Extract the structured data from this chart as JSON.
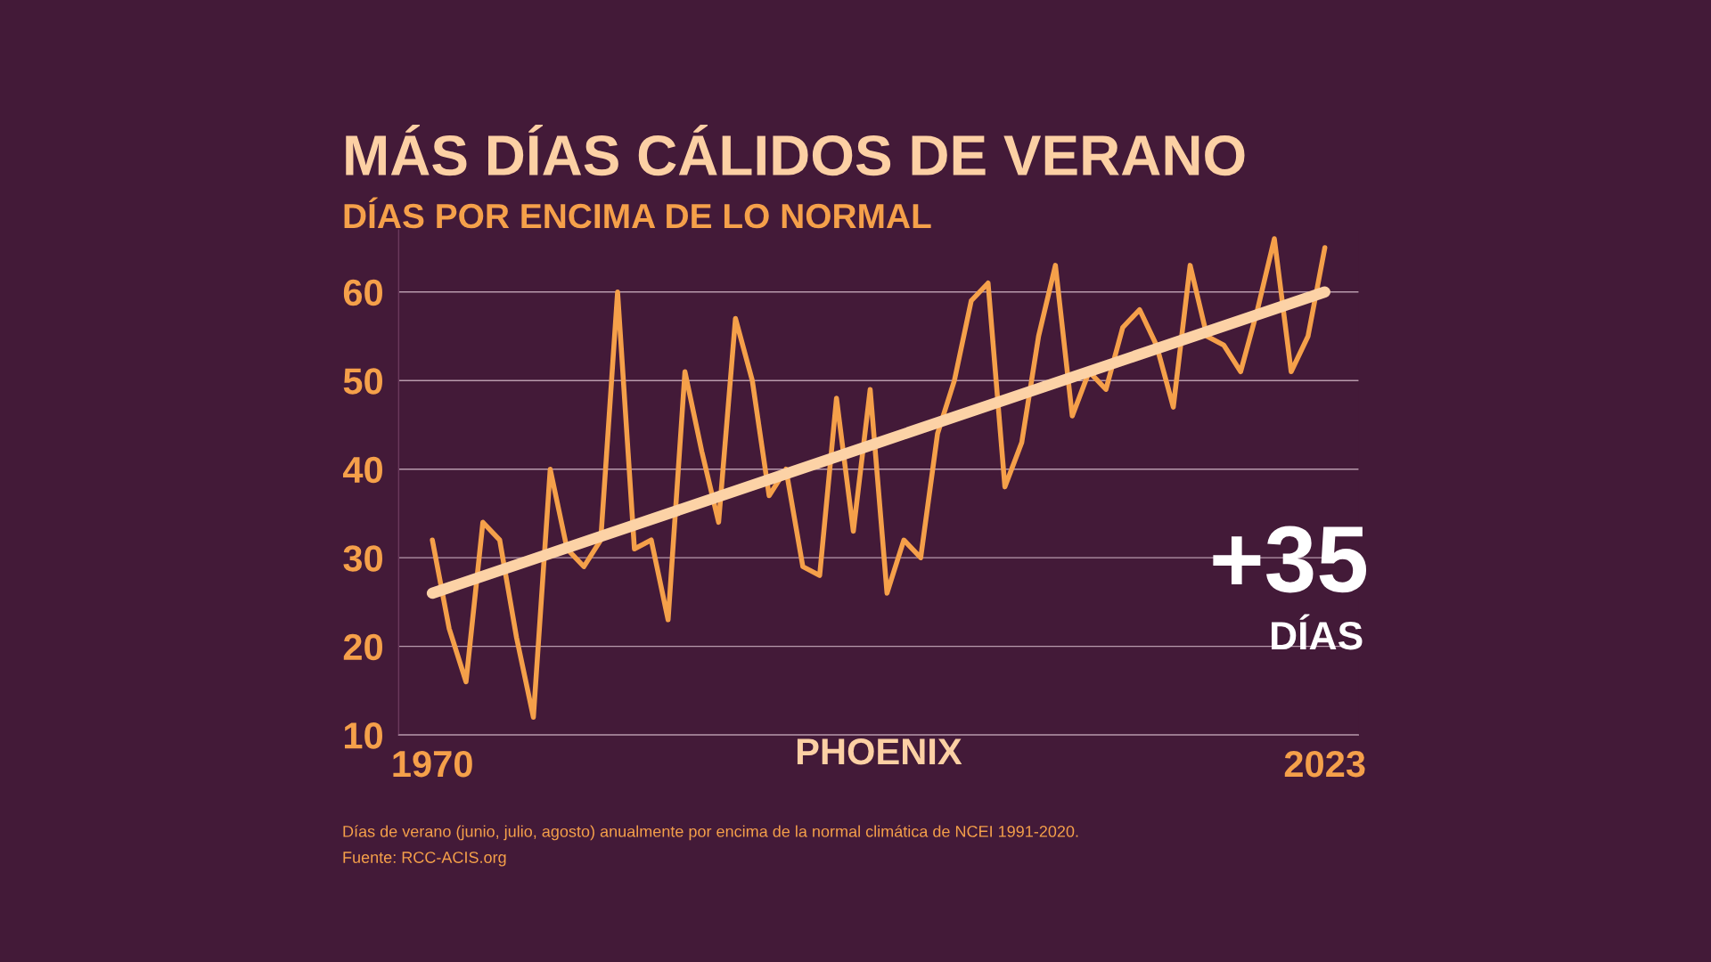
{
  "chart_data": {
    "type": "line",
    "title": "MÁS DÍAS CÁLIDOS DE VERANO",
    "subtitle": "DÍAS POR ENCIMA DE LO NORMAL",
    "xlabel": "PHOENIX",
    "x": [
      1970,
      1971,
      1972,
      1973,
      1974,
      1975,
      1976,
      1977,
      1978,
      1979,
      1980,
      1981,
      1982,
      1983,
      1984,
      1985,
      1986,
      1987,
      1988,
      1989,
      1990,
      1991,
      1992,
      1993,
      1994,
      1995,
      1996,
      1997,
      1998,
      1999,
      2000,
      2001,
      2002,
      2003,
      2004,
      2005,
      2006,
      2007,
      2008,
      2009,
      2010,
      2011,
      2012,
      2013,
      2014,
      2015,
      2016,
      2017,
      2018,
      2019,
      2020,
      2021,
      2022,
      2023
    ],
    "series": [
      {
        "color": "#f5a04a",
        "values": [
          32,
          22,
          16,
          34,
          32,
          21,
          12,
          40,
          31,
          29,
          32,
          60,
          31,
          32,
          23,
          51,
          42,
          34,
          57,
          50,
          37,
          40,
          29,
          28,
          48,
          33,
          49,
          26,
          32,
          30,
          44,
          50,
          59,
          61,
          38,
          43,
          55,
          63,
          46,
          51,
          49,
          56,
          58,
          54,
          47,
          63,
          55,
          54,
          51,
          58,
          66,
          51,
          55,
          65
        ]
      },
      {
        "type": "line",
        "color": "#fcd2a6",
        "x": [
          1970,
          2023
        ],
        "values": [
          26,
          60
        ]
      }
    ],
    "xlim": [
      1968,
      2025
    ],
    "xticks": [
      1970,
      2023
    ],
    "ylim": [
      10,
      67
    ],
    "yticks": [
      10,
      20,
      30,
      40,
      50,
      60
    ],
    "grid": "y",
    "legend": false,
    "line_style": "solid",
    "marker": "none",
    "annotations": [
      "+35",
      "DÍAS",
      "Días de verano (junio, julio, agosto) anualmente por encima de la normal climática de NCEI 1991-2020.",
      "Fuente: RCC-ACIS.org"
    ]
  }
}
